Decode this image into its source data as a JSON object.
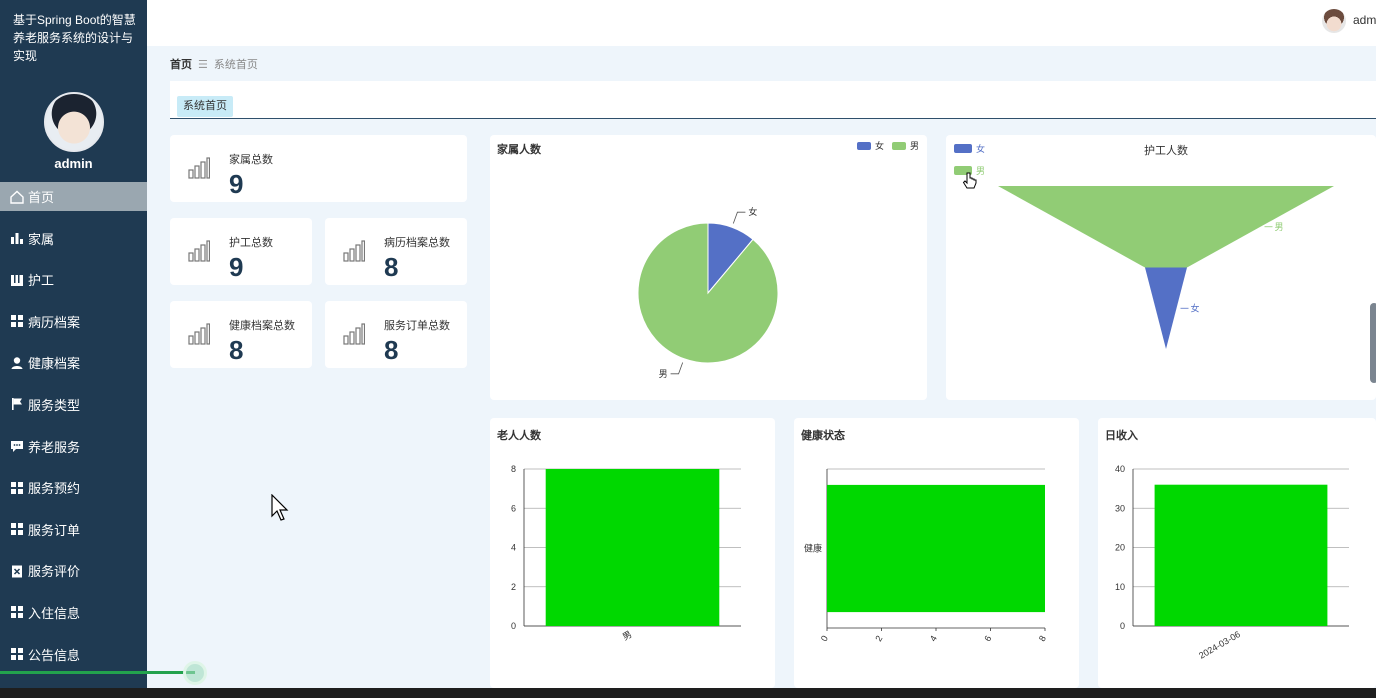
{
  "app": {
    "title": "基于Spring Boot的智慧养老服务系统的设计与实现",
    "user": "admin",
    "top_user": "admi"
  },
  "sidebar": {
    "items": [
      {
        "label": "首页",
        "icon": "home-icon",
        "active": true
      },
      {
        "label": "家属",
        "icon": "bar-chart-icon"
      },
      {
        "label": "护工",
        "icon": "book-icon"
      },
      {
        "label": "病历档案",
        "icon": "grid-icon"
      },
      {
        "label": "健康档案",
        "icon": "person-icon"
      },
      {
        "label": "服务类型",
        "icon": "flag-icon"
      },
      {
        "label": "养老服务",
        "icon": "message-icon"
      },
      {
        "label": "服务预约",
        "icon": "grid-icon"
      },
      {
        "label": "服务订单",
        "icon": "grid-icon"
      },
      {
        "label": "服务评价",
        "icon": "clipboard-icon"
      },
      {
        "label": "入住信息",
        "icon": "grid-icon"
      },
      {
        "label": "公告信息",
        "icon": "grid-icon"
      }
    ]
  },
  "breadcrumb": {
    "home": "首页",
    "separator": "☰",
    "current": "系统首页"
  },
  "tabs": [
    {
      "label": "系统首页"
    }
  ],
  "stats": {
    "family": {
      "label": "家属总数",
      "value": "9"
    },
    "caregiver": {
      "label": "护工总数",
      "value": "9"
    },
    "medical": {
      "label": "病历档案总数",
      "value": "8"
    },
    "health": {
      "label": "健康档案总数",
      "value": "8"
    },
    "orders": {
      "label": "服务订单总数",
      "value": "8"
    }
  },
  "colors": {
    "sidebar": "#1f3a52",
    "female": "#5470c6",
    "male": "#91cc75",
    "bar": "#00d800"
  },
  "chart_data": [
    {
      "type": "pie",
      "title": "家属人数",
      "legend": [
        "女",
        "男"
      ],
      "legend_position": "top-right",
      "slices": [
        {
          "name": "女",
          "value": 1
        },
        {
          "name": "男",
          "value": 8
        }
      ]
    },
    {
      "type": "funnel",
      "title": "护工人数",
      "legend": [
        "女",
        "男"
      ],
      "legend_position": "top-left",
      "slices": [
        {
          "name": "男",
          "value": 8
        },
        {
          "name": "女",
          "value": 1
        }
      ]
    },
    {
      "type": "bar",
      "title": "老人人数",
      "categories": [
        "男"
      ],
      "values": [
        8
      ],
      "ylim": [
        0,
        8
      ],
      "yticks": [
        0,
        2,
        4,
        6,
        8
      ]
    },
    {
      "type": "bar",
      "orientation": "horizontal",
      "title": "健康状态",
      "categories": [
        "健康"
      ],
      "values": [
        8
      ],
      "xlim": [
        0,
        8
      ],
      "xticks": [
        0,
        2,
        4,
        6,
        8
      ]
    },
    {
      "type": "bar",
      "title": "日收入",
      "categories": [
        "2024-03-06"
      ],
      "values": [
        36
      ],
      "ylim": [
        0,
        40
      ],
      "yticks": [
        0,
        10,
        20,
        30,
        40
      ]
    }
  ]
}
